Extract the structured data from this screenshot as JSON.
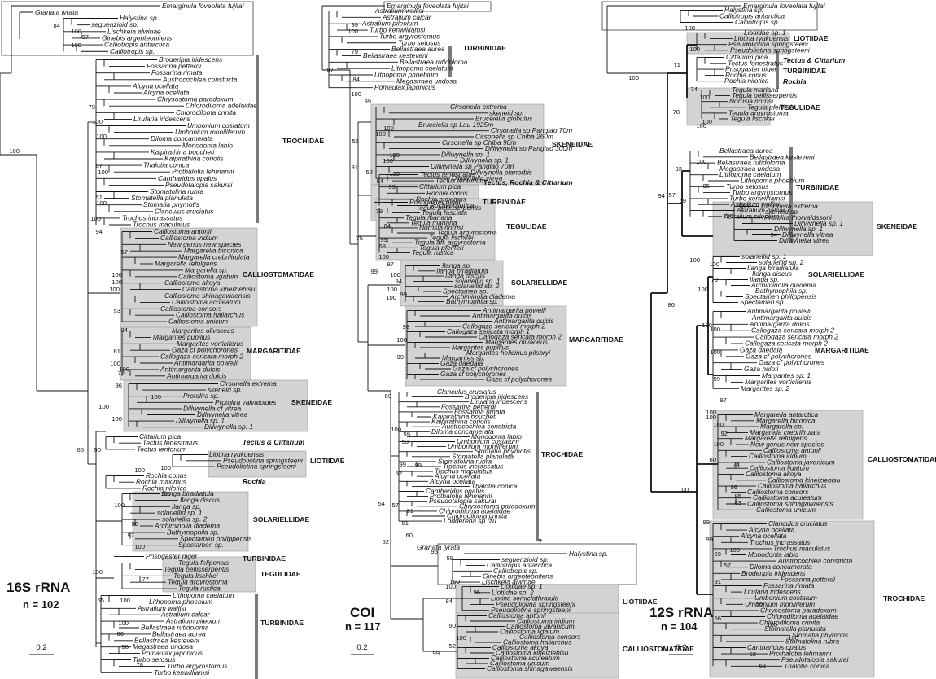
{
  "panels": [
    {
      "id": "16s",
      "title": "16S rRNA",
      "n_label": "n = 102",
      "scale_label": "0.2",
      "families": [
        "TROCHIDAE",
        "CALLIOSTOMATIDAE",
        "MARGARITIDAE",
        "SKENEIDAE",
        "Tectus & Cittarium",
        "LIOTIIDAE",
        "Rochia",
        "SOLARIELLIDAE",
        "TURBINIDAE",
        "TEGULIDAE",
        "TURBINIDAE"
      ],
      "outgroup": [
        "Emarginula foveolata fujitai",
        "Granata lyrata",
        "Halystina sp.",
        "seguenzioid sp.",
        "Lischkeia alwinae",
        "Ginebis argenteonitens",
        "Calliotropis antarctica",
        "Calliotropis sp."
      ],
      "troch": [
        "Broderipia iridescens",
        "Fossarina petterdi",
        "Fossarina rimata",
        "Austrocochlea constricta",
        "Alcyna ocellata",
        "Alcyna ocellata",
        "Chrysostoma paradoxum",
        "Chlorodiloma adelaidae",
        "Chlorodiloma crinita",
        "Lirularia iridescens",
        "Umbonium costatum",
        "Umbonium moniliferum",
        "Diloma concamerata",
        "Monodonta labio",
        "Kaipirathina boucheti",
        "Kaipirathina coriolis",
        "Thalotia conica",
        "Prothalotia lehmanni",
        "Cantharidus opalus",
        "Pseudotalopia sakurai",
        "Stomatolina rubra",
        "Stomatella planulata",
        "Stomatia phymotis",
        "Clanculus cruciatus",
        "Trochus incrassatus",
        "Trochus maculatus"
      ],
      "callio": [
        "Calliostoma antonii",
        "Calliostoma iridium",
        "New genus new species",
        "Margarella biconica",
        "Margarella crebrilirulata",
        "Margarella refulgens",
        "Margarella sp.",
        "Calliostoma ligatum",
        "Calliostoma akoya",
        "Calliostoma kiheiziebisu",
        "Calliostoma shinagawaensis",
        "Calliostoma aculeatum",
        "Calliostoma consors",
        "Calliostoma haliarchus",
        "Calliostoma unicum"
      ],
      "marg": [
        "Margarites olivaceus",
        "Margarites pupillus",
        "Margarites vorticiferus",
        "Gaza cf polychorones",
        "Callogaza sericata morph 2",
        "Antimargarita powelli",
        "Antimargarita dulcis",
        "Antimargarita dulcis"
      ],
      "sken": [
        "Cirsonella extrema",
        "skeneid sp.",
        "Protolira sp.",
        "Protolira valvatoides",
        "Dillwynella cf vitrea",
        "Dillwynella vitrea",
        "Dillwynella sp. 1",
        "Dillwynella sp. 1"
      ],
      "tectus": [
        "Cittarium pica",
        "Tectus fenestratus",
        "Tectus tentorium"
      ],
      "liot": [
        "Liotina ryukuensis",
        "Pseudoliotina springsteeni",
        "Pseudoliotina springsteeni"
      ],
      "rochia": [
        "Rochia conus",
        "Rochia maximus",
        "Rochia nilotica"
      ],
      "solar": [
        "Ilanga biradiatula",
        "Ilanga discus",
        "Ilanga sp.",
        "solariellid sp. 1",
        "solariellid sp. 2",
        "Archiminolia diadema",
        "Bathymophila sp.",
        "Spectamen philippensis",
        "Spectamen sp."
      ],
      "prisog": [
        "Prisogaster niger"
      ],
      "tegul": [
        "Tegula felipensis",
        "Tegula pellisserpentis",
        "Tegula lischkei",
        "Tegula argyrostoma",
        "Tegula rustica"
      ],
      "turb": [
        "Lithopoma caelatum",
        "Lithopoma phoebium",
        "Astralium wallisi",
        "Astralium calcar",
        "Astralium pileolum",
        "Bellastraea rutidoloma",
        "Bellastraea aurea",
        "Bellastraea kesteveni",
        "Megastraea undosa",
        "Pomaulax japonicus",
        "Turbo setosus",
        "Turbo argyrostomus",
        "Turbo kenwilliamsi"
      ],
      "boot": [
        "100",
        "84",
        "100",
        "97",
        "100",
        "79",
        "100",
        "100",
        "87",
        "100",
        "51",
        "100",
        "100",
        "94",
        "57",
        "100",
        "100",
        "100",
        "53",
        "94",
        "61",
        "100",
        "100",
        "72",
        "96",
        "100",
        "100",
        "100",
        "65",
        "90",
        "100",
        "100",
        "100",
        "100",
        "96",
        "97",
        "100",
        "100",
        "77",
        "65",
        "100",
        "100",
        "66",
        "56",
        "78"
      ]
    },
    {
      "id": "coi",
      "title": "COI",
      "n_label": "n = 117",
      "scale_label": "0.2",
      "families": [
        "TURBINIDAE",
        "SKENEIDAE",
        "Tectus, Rochia & Cittarium",
        "TURBINIDAE",
        "TEGULIDAE",
        "SOLARIELLIDAE",
        "MARGARITIDAE",
        "TROCHIDAE",
        "?",
        "LIOTIIDAE",
        "CALLIOSTOMATIDAE"
      ],
      "outgroup": [
        "Emarginula foveolata fujitai",
        "Granata lyrata",
        "Halystina sp.",
        "seguenzioid sp.",
        "Calliotropis antarctica",
        "Calliotropis sp.",
        "Ginebis argenteonitens",
        "Lischkeia alwinae"
      ],
      "turb": [
        "Astralium wallisi",
        "Astralium calcar",
        "Astralium pileolum",
        "Turbo kenwilliamsi",
        "Turbo argyrostomus",
        "Turbo setosus",
        "Bellastraea aurea",
        "Bellastraea kesteveni",
        "Bellastraea rutidoloma",
        "Lithopoma caelatum",
        "Lithopoma phoebium",
        "Megastraea undosa",
        "Pomaulax japonicus"
      ],
      "sken": [
        "Cirsonella extrema",
        "skeneid sp.",
        "Bruceiella globulus",
        "Bruceiella sp Lau 1925m",
        "Cirsonella sp Panglao 70m",
        "Cirsonella sp Chiba 260m",
        "Cirsonella sp Chiba 90m",
        "Dillwynella sp Panglao 300m",
        "Dillwynella sp. 1",
        "Dillwynella sp. 1",
        "Dillwynella sp Panglao 70m",
        "Dillwynella planorbis",
        "Dillwynella vitrea"
      ],
      "trc": [
        "Tectus fenestratus",
        "Tectus tentorium",
        "Cittarium pica",
        "Rochia conus",
        "Rochia maximus",
        "Rochia nilotica"
      ],
      "prisog": [
        "Prisogaster niger"
      ],
      "tegul": [
        "Tegula pellisserpentis",
        "Tegula fasciata",
        "Tegula mariana",
        "Tegula mariana",
        "Norrisia norrisi",
        "Tegula argyrostoma",
        "Tegula lischkei",
        "Tegula aff. argyrostoma",
        "Tegula pfeifferi",
        "Tegula rustica"
      ],
      "solar": [
        "Ilanga sp.",
        "Ilanga biradiatula",
        "Ilanga discus",
        "solariellid sp. 1",
        "solariellid sp. 2",
        "Spectamen sp.",
        "Archiminolia diadema",
        "Bathymophila sp."
      ],
      "marg": [
        "Antimargarita powelli",
        "Antimargarita dulcis",
        "Antimargarita dulcis",
        "Callogaza sericata morph 2",
        "Callogaza sericata morph 1",
        "Callogaza sericata morph 2",
        "Margarites olivaceus",
        "Margarites pupillus",
        "Margarites helicinus pilsbryi",
        "Margarites sp.",
        "Gaza daedala",
        "Gaza cf polychorones",
        "Gaza cf polychorones",
        "Gaza cf polychorones"
      ],
      "troch": [
        "Clanculus cruciatus",
        "Broderipia iridescens",
        "Lirularia iridescens",
        "Fossarina petterdi",
        "Fossarina rimata",
        "Kaipirathina boucheti",
        "Kaipirathina coriolis",
        "Austrocochlea constricta",
        "Diloma concamerata",
        "Monodonta labio",
        "Umbonium costatum",
        "Umbonium moniliferum",
        "Stomatia phymotis",
        "Stomatella planulata",
        "Stomatolina rubra",
        "Trochus incrassatus",
        "Trochus maculatus",
        "Alcyna ocellata",
        "Alcyna ocellata",
        "Thalotia conica",
        "Cantharidus opalus",
        "Prothalotia lehmanni",
        "Pseudotalopia sakurai",
        "Chrysostoma paradoxum",
        "Chlorodiloma adelaidae",
        "Chlorodiloma crinita",
        "Lodderena sp Izu"
      ],
      "liot": [
        "Liotiidae sp. 1",
        "Liotiidae sp. 2",
        "Liotina semiclathratula",
        "Pseudoliotina springsteeni",
        "Pseudoliotina springsteeni"
      ],
      "callio": [
        "Calliostoma antonii",
        "Calliostoma iridium",
        "Calliostoma javanicum",
        "Calliostoma ligatum",
        "Calliostoma consors",
        "Calliostoma haliarchus",
        "Calliostoma akoya",
        "Calliostoma kiheiziebisu",
        "Calliostoma aculeatum",
        "Calliostoma unicum",
        "Calliostoma shinagawaensis"
      ],
      "boot": [
        "99",
        "100",
        "79",
        "97",
        "84",
        "100",
        "99",
        "55",
        "100",
        "100",
        "100",
        "100",
        "100",
        "91",
        "52",
        "84",
        "99",
        "79",
        "75",
        "84",
        "99",
        "68",
        "100",
        "97",
        "100",
        "99",
        "94",
        "100",
        "99",
        "100",
        "98",
        "100",
        "99",
        "69",
        "100",
        "59",
        "53",
        "99",
        "52",
        "99",
        "54",
        "57",
        "81",
        "61",
        "60",
        "52",
        "59",
        "95",
        "100",
        "100",
        "96",
        "84",
        "90",
        "100",
        "52",
        "99"
      ]
    },
    {
      "id": "12s",
      "title": "12S rRNA",
      "n_label": "n = 104",
      "scale_label": "0.2",
      "families": [
        "LIOTIIDAE",
        "Tectus & Cittarium",
        "TURBINIDAE",
        "Rochia",
        "TEGULIDAE",
        "TURBINIDAE",
        "SKENEIDAE",
        "SOLARIELLIDAE",
        "MARGARITIDAE",
        "CALLIOSTOMATIDAE",
        "TROCHIDAE"
      ],
      "outgroup": [
        "Emarginula foveolata fujitai",
        "Halystina sp.",
        "Calliotropis antarctica",
        "Calliotropis sp."
      ],
      "liot": [
        "Liotiidae sp. 1",
        "Liotina ryukuensis",
        "Pseudoliotina springsteeni",
        "Pseudoliotina springsteeni"
      ],
      "tectus": [
        "Cittarium pica",
        "Tectus fenestratus",
        "Prisogaster niger",
        "Rochia conus",
        "Rochia nilotica"
      ],
      "tegul": [
        "Tegula mariana",
        "Tegula pellisserpentis",
        "Norrisia norrisi",
        "Tegula pfeifferi",
        "Tegula argyrostoma",
        "Tegula lischkei"
      ],
      "turb": [
        "Bellastraea aurea",
        "Bellastraea kesteveni",
        "Bellastraea rutidoloma",
        "Megastraea undosa",
        "Lithopoma caelatum",
        "Lithopoma phoebium",
        "Turbo setosus",
        "Turbo argyrostomus",
        "Turbo kenwilliamsi",
        "Astralium wallisi",
        "Astralium calcar",
        "Astralium pileolum"
      ],
      "sken": [
        "Cirsonella extrema",
        "skeneid sp.",
        "Protolira thorvaldssoni",
        "Dillwynella sp. 1",
        "Dillwynella sp. 1",
        "Dillwynella vitrea",
        "Dillwynella vitrea"
      ],
      "solar": [
        "solariellid sp. 1",
        "solariellid sp. 2",
        "Ilanga biradiatula",
        "Ilanga discus",
        "Ilanga sp.",
        "Archiminolia diadema",
        "Bathymophila sp.",
        "Spectamen philippensis",
        "Spectamen sp."
      ],
      "marg": [
        "Antimargarita powelli",
        "Antimargarita dulcis",
        "Antimargarita dulcis",
        "Callogaza sericata morph 2",
        "Callogaza sericata morph 2",
        "Callogaza sericata morph 2",
        "Gaza daedala",
        "Gaza cf polychorones",
        "Gaza cf polychorones",
        "Gaza huloti",
        "Margarites sp. 1",
        "Margarites vorticiferus",
        "Margarites sp. 2"
      ],
      "callio": [
        "Margarella antarctica",
        "Margarella biconica",
        "Margarella sp.",
        "Margarella crebrilirulata",
        "Margarella refulgens",
        "New genus new species",
        "Calliostoma antonii",
        "Calliostoma iridium",
        "Calliostoma javanicum",
        "Calliostoma ligatum",
        "Calliostoma akoya",
        "Calliostoma kiheiziebisu",
        "Calliostoma haliarchus",
        "Calliostoma consors",
        "Calliostoma aculeatum",
        "Calliostoma shinagawaensis",
        "Calliostoma unicum"
      ],
      "troch": [
        "Clanculus cruciatus",
        "Alcyna ocellata",
        "Alcyna ocellata",
        "Trochus incrassatus",
        "Trochus maculatus",
        "Monodonta labio",
        "Austrocochlea constricta",
        "Diloma concamerata",
        "Broderipia iridescens",
        "Fossarina petterdi",
        "Fossarina rimata",
        "Lirularia iridescens",
        "Umbonium costatum",
        "Umbonium moniliferum",
        "Chrysostoma paradoxum",
        "Chlorodiloma adelaidae",
        "Chlorodiloma crinita",
        "Stomatella planulata",
        "Stomatia phymotis",
        "Stomatolina rubra",
        "Cantharidus opalus",
        "Prothalotia lehmanni",
        "Pseudotalopia sakurai",
        "Thalotia conica"
      ],
      "boot": [
        "100",
        "100",
        "100",
        "71",
        "78",
        "74",
        "100",
        "100",
        "100",
        "93",
        "57",
        "100",
        "95",
        "94",
        "59",
        "100",
        "100",
        "94",
        "100",
        "100",
        "79",
        "100",
        "86",
        "100",
        "100",
        "100",
        "99",
        "97",
        "100",
        "100",
        "100",
        "92",
        "100",
        "60",
        "74",
        "96",
        "95",
        "83",
        "100",
        "99",
        "69",
        "57",
        "91",
        "66",
        "99",
        "100",
        "99",
        "100",
        "52",
        "63",
        "100"
      ]
    }
  ]
}
